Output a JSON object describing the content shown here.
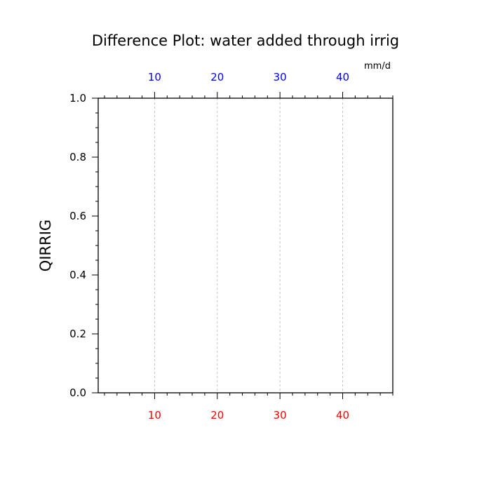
{
  "chart_data": {
    "type": "line",
    "title": "Difference Plot: water added through irrig",
    "units": "mm/d",
    "xlabel": "",
    "ylabel": "QIRRIG",
    "xlim": [
      1,
      48
    ],
    "ylim": [
      0.0,
      1.0
    ],
    "x_ticks_bottom": [
      10,
      20,
      30,
      40
    ],
    "x_ticks_top": [
      10,
      20,
      30,
      40
    ],
    "y_ticks": [
      "0.0",
      "0.2",
      "0.4",
      "0.6",
      "0.8",
      "1.0"
    ],
    "series": [],
    "vertical_gridlines": true
  },
  "colors": {
    "axis": "#000000",
    "bottom_tick_labels": "#ff0000",
    "top_tick_labels": "#0000ff",
    "gridline": "#b4b4b4"
  }
}
